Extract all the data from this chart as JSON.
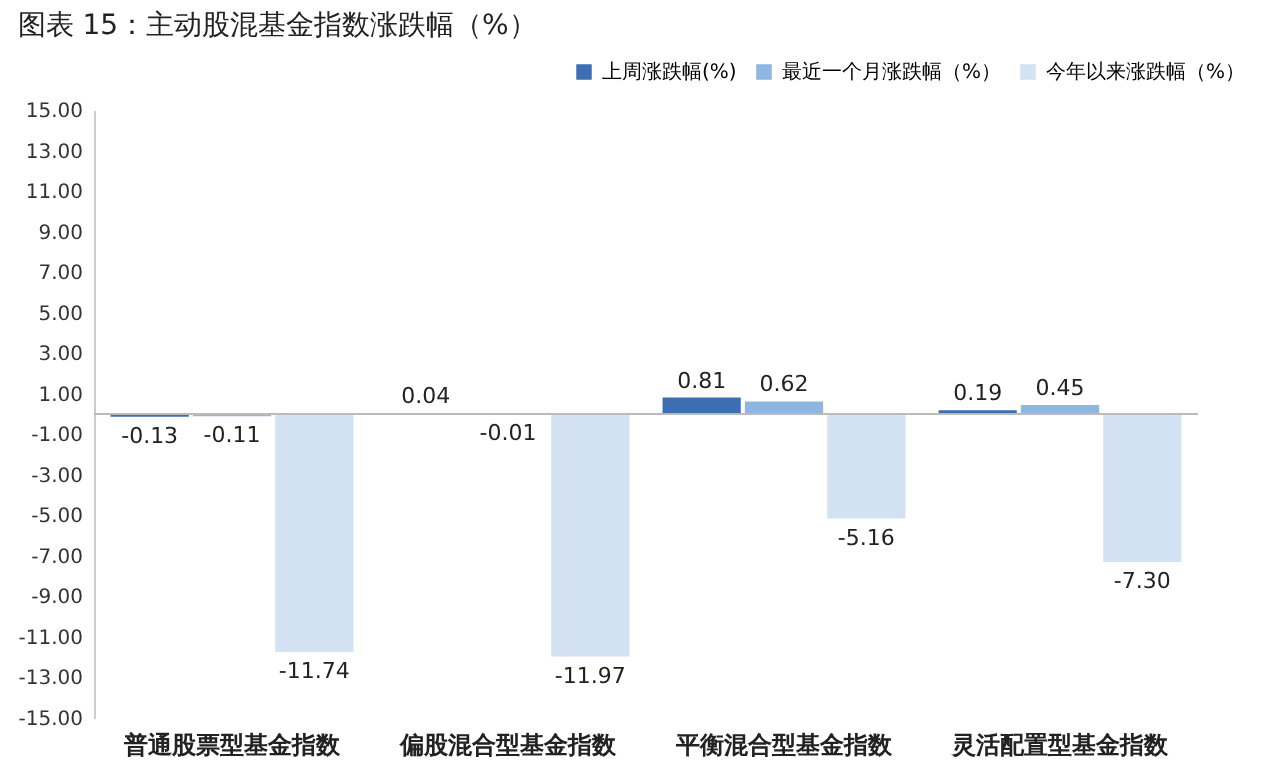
{
  "chart_data": {
    "type": "bar",
    "title": "图表 15：主动股混基金指数涨跌幅（%）",
    "categories": [
      "普通股票型基金指数",
      "偏股混合型基金指数",
      "平衡混合型基金指数",
      "灵活配置型基金指数"
    ],
    "series": [
      {
        "name": "上周涨跌幅(%)",
        "color": "#3d6eb4",
        "values": [
          -0.13,
          0.04,
          0.81,
          0.19
        ],
        "value_labels": [
          "-0.13",
          "0.04",
          "0.81",
          "0.19"
        ]
      },
      {
        "name": "最近一个月涨跌幅（%）",
        "color": "#8fb5e1",
        "values": [
          -0.11,
          -0.01,
          0.62,
          0.45
        ],
        "value_labels": [
          "-0.11",
          "-0.01",
          "0.62",
          "0.45"
        ]
      },
      {
        "name": "今年以来涨跌幅（%）",
        "color": "#d3e2f3",
        "values": [
          -11.74,
          -11.97,
          -5.16,
          -7.3
        ],
        "value_labels": [
          "-11.74",
          "-11.97",
          "-5.16",
          "-7.30"
        ]
      }
    ],
    "ylim": [
      -15,
      15
    ],
    "yticks": [
      {
        "value": 15,
        "label": "15.00"
      },
      {
        "value": 13,
        "label": "13.00"
      },
      {
        "value": 11,
        "label": "11.00"
      },
      {
        "value": 9,
        "label": "9.00"
      },
      {
        "value": 7,
        "label": "7.00"
      },
      {
        "value": 5,
        "label": "5.00"
      },
      {
        "value": 3,
        "label": "3.00"
      },
      {
        "value": 1,
        "label": "1.00"
      },
      {
        "value": -1,
        "label": "-1.00"
      },
      {
        "value": -3,
        "label": "-3.00"
      },
      {
        "value": -5,
        "label": "-5.00"
      },
      {
        "value": -7,
        "label": "-7.00"
      },
      {
        "value": -9,
        "label": "-9.00"
      },
      {
        "value": -11,
        "label": "-11.00"
      },
      {
        "value": -13,
        "label": "-13.00"
      },
      {
        "value": -15,
        "label": "-15.00"
      }
    ],
    "grid": false,
    "legend": "top right"
  }
}
